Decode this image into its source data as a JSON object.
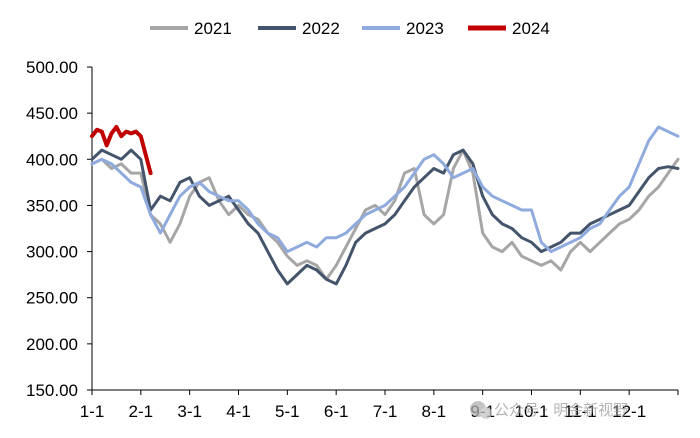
{
  "chart_data": {
    "type": "line",
    "title": "",
    "xlabel": "",
    "ylabel": "",
    "ylim": [
      150,
      500
    ],
    "yticks": [
      "500.00",
      "450.00",
      "400.00",
      "350.00",
      "300.00",
      "250.00",
      "200.00",
      "150.00"
    ],
    "xticks": [
      "1-1",
      "2-1",
      "3-1",
      "4-1",
      "5-1",
      "6-1",
      "7-1",
      "8-1",
      "9-1",
      "10-1",
      "11-1",
      "12-1"
    ],
    "x_unit": "month of year (1 = Jan 1)",
    "legend_position": "top",
    "series": [
      {
        "name": "2021",
        "color": "#a6a6a6",
        "x": [
          1,
          1.2,
          1.4,
          1.6,
          1.8,
          2.0,
          2.2,
          2.4,
          2.6,
          2.8,
          3.0,
          3.2,
          3.4,
          3.6,
          3.8,
          4.0,
          4.2,
          4.4,
          4.6,
          4.8,
          5.0,
          5.2,
          5.4,
          5.6,
          5.8,
          6.0,
          6.2,
          6.4,
          6.6,
          6.8,
          7.0,
          7.2,
          7.4,
          7.6,
          7.8,
          8.0,
          8.2,
          8.4,
          8.6,
          8.8,
          9.0,
          9.2,
          9.4,
          9.6,
          9.8,
          10.0,
          10.2,
          10.4,
          10.6,
          10.8,
          11.0,
          11.2,
          11.4,
          11.6,
          11.8,
          12.0,
          12.2,
          12.4,
          12.6,
          12.8,
          13.0
        ],
        "values": [
          395,
          400,
          390,
          395,
          385,
          385,
          340,
          330,
          310,
          330,
          360,
          375,
          380,
          355,
          340,
          350,
          340,
          335,
          320,
          310,
          295,
          285,
          290,
          285,
          270,
          285,
          305,
          325,
          345,
          350,
          340,
          355,
          385,
          390,
          340,
          330,
          340,
          390,
          410,
          385,
          320,
          305,
          300,
          310,
          295,
          290,
          285,
          290,
          280,
          300,
          310,
          300,
          310,
          320,
          330,
          335,
          345,
          360,
          370,
          385,
          400
        ]
      },
      {
        "name": "2022",
        "color": "#44546a",
        "x": [
          1,
          1.2,
          1.4,
          1.6,
          1.8,
          2.0,
          2.2,
          2.4,
          2.6,
          2.8,
          3.0,
          3.2,
          3.4,
          3.6,
          3.8,
          4.0,
          4.2,
          4.4,
          4.6,
          4.8,
          5.0,
          5.2,
          5.4,
          5.6,
          5.8,
          6.0,
          6.2,
          6.4,
          6.6,
          6.8,
          7.0,
          7.2,
          7.4,
          7.6,
          7.8,
          8.0,
          8.2,
          8.4,
          8.6,
          8.8,
          9.0,
          9.2,
          9.4,
          9.6,
          9.8,
          10.0,
          10.2,
          10.4,
          10.6,
          10.8,
          11.0,
          11.2,
          11.4,
          11.6,
          11.8,
          12.0,
          12.2,
          12.4,
          12.6,
          12.8,
          13.0
        ],
        "values": [
          400,
          410,
          405,
          400,
          410,
          400,
          345,
          360,
          355,
          375,
          380,
          360,
          350,
          355,
          360,
          345,
          330,
          320,
          300,
          280,
          265,
          275,
          285,
          280,
          270,
          265,
          285,
          310,
          320,
          325,
          330,
          340,
          355,
          370,
          380,
          390,
          385,
          405,
          410,
          395,
          360,
          340,
          330,
          325,
          315,
          310,
          300,
          305,
          310,
          320,
          320,
          330,
          335,
          340,
          345,
          350,
          365,
          380,
          390,
          392,
          390
        ]
      },
      {
        "name": "2023",
        "color": "#8faadc",
        "x": [
          1,
          1.2,
          1.4,
          1.6,
          1.8,
          2.0,
          2.2,
          2.4,
          2.6,
          2.8,
          3.0,
          3.2,
          3.4,
          3.6,
          3.8,
          4.0,
          4.2,
          4.4,
          4.6,
          4.8,
          5.0,
          5.2,
          5.4,
          5.6,
          5.8,
          6.0,
          6.2,
          6.4,
          6.6,
          6.8,
          7.0,
          7.2,
          7.4,
          7.6,
          7.8,
          8.0,
          8.2,
          8.4,
          8.6,
          8.8,
          9.0,
          9.2,
          9.4,
          9.6,
          9.8,
          10.0,
          10.2,
          10.4,
          10.6,
          10.8,
          11.0,
          11.2,
          11.4,
          11.6,
          11.8,
          12.0,
          12.2,
          12.4,
          12.6,
          12.8,
          13.0
        ],
        "values": [
          395,
          400,
          395,
          385,
          375,
          370,
          340,
          320,
          340,
          360,
          370,
          375,
          365,
          360,
          355,
          355,
          345,
          330,
          320,
          315,
          300,
          305,
          310,
          305,
          315,
          315,
          320,
          330,
          340,
          345,
          350,
          360,
          370,
          385,
          400,
          405,
          395,
          380,
          385,
          390,
          370,
          360,
          355,
          350,
          345,
          345,
          310,
          300,
          305,
          310,
          315,
          325,
          330,
          345,
          360,
          370,
          395,
          420,
          435,
          430,
          425
        ]
      },
      {
        "name": "2024",
        "color": "#c00000",
        "x": [
          1,
          1.1,
          1.2,
          1.3,
          1.4,
          1.5,
          1.6,
          1.7,
          1.8,
          1.9,
          2.0,
          2.1,
          2.2
        ],
        "values": [
          425,
          432,
          430,
          415,
          428,
          435,
          425,
          430,
          428,
          430,
          425,
          405,
          385
        ]
      }
    ],
    "annotations": [
      {
        "text": "公众号 · 明金新视野",
        "kind": "watermark"
      }
    ]
  }
}
